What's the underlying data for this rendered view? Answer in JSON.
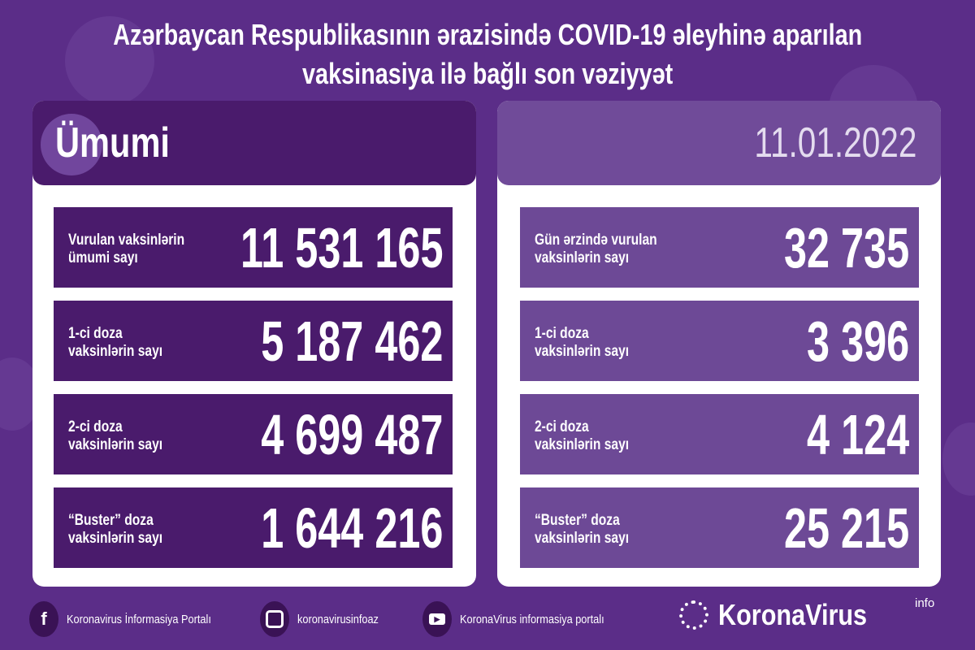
{
  "title": {
    "line1": "Azərbaycan Respublikasının ərazisində COVID-19 əleyhinə aparılan",
    "line2": "vaksinasiya ilə bağlı son vəziyyət"
  },
  "colors": {
    "background": "#5b2d88",
    "left_accent": "#4a1b6c",
    "right_accent": "#6d4996"
  },
  "left": {
    "header": "Ümumi",
    "rows": [
      {
        "label1": "Vurulan vaksinlərin",
        "label2": "ümumi sayı",
        "value": "11 531 165"
      },
      {
        "label1": "1-ci doza",
        "label2": "vaksinlərin sayı",
        "value": "5 187 462"
      },
      {
        "label1": "2-ci doza",
        "label2": "vaksinlərin sayı",
        "value": "4 699 487"
      },
      {
        "label1": "“Buster” doza",
        "label2": "vaksinlərin sayı",
        "value": "1 644 216"
      }
    ]
  },
  "right": {
    "header": "11.01.2022",
    "rows": [
      {
        "label1": "Gün ərzində vurulan",
        "label2": "vaksinlərin sayı",
        "value": "32 735"
      },
      {
        "label1": "1-ci doza",
        "label2": "vaksinlərin sayı",
        "value": "3 396"
      },
      {
        "label1": "2-ci doza",
        "label2": "vaksinlərin sayı",
        "value": "4 124"
      },
      {
        "label1": "“Buster” doza",
        "label2": "vaksinlərin sayı",
        "value": "25 215"
      }
    ]
  },
  "footer": {
    "facebook": {
      "icon": "facebook-icon",
      "text": "Koronavirus İnformasiya Portalı"
    },
    "instagram": {
      "icon": "instagram-icon",
      "text": "koronavirusinfoaz"
    },
    "youtube": {
      "icon": "youtube-icon",
      "text": "KoronaVirus informasiya portalı"
    },
    "brand": {
      "name": "KoronaVirus",
      "sup": "info"
    }
  }
}
